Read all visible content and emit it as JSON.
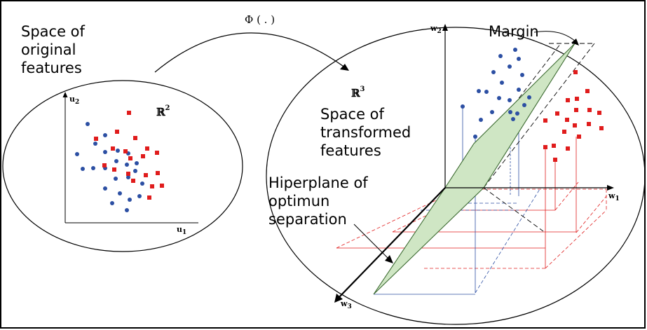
{
  "colors": {
    "class_a": "#2c4fa3",
    "class_b": "#e01c1c",
    "plane_fill": "#cfe6c4",
    "plane_stroke": "#3d6b32",
    "frame": "#000000"
  },
  "labels": {
    "original_line1": "Space of",
    "original_line2": "original",
    "original_line3": "features",
    "transformed_line1": "Space of",
    "transformed_line2": "transformed",
    "transformed_line3": "features",
    "hyperplane_line1": "Hiperplane of",
    "hyperplane_line2": "optimun",
    "hyperplane_line3": "separation",
    "margin": "Margin",
    "mapping": "Φ ( . )"
  },
  "spaces": {
    "original": {
      "symbol": "ℝ",
      "exponent": "2",
      "axis_x": "u",
      "axis_x_sub": "1",
      "axis_y": "u",
      "axis_y_sub": "2"
    },
    "transformed": {
      "symbol": "ℝ",
      "exponent": "3",
      "axis_1": "w",
      "axis_1_sub": "1",
      "axis_2": "w",
      "axis_2_sub": "2",
      "axis_3": "w",
      "axis_3_sub": "3"
    }
  },
  "icons": {
    "class_a_marker": "circle-dot",
    "class_b_marker": "square"
  }
}
